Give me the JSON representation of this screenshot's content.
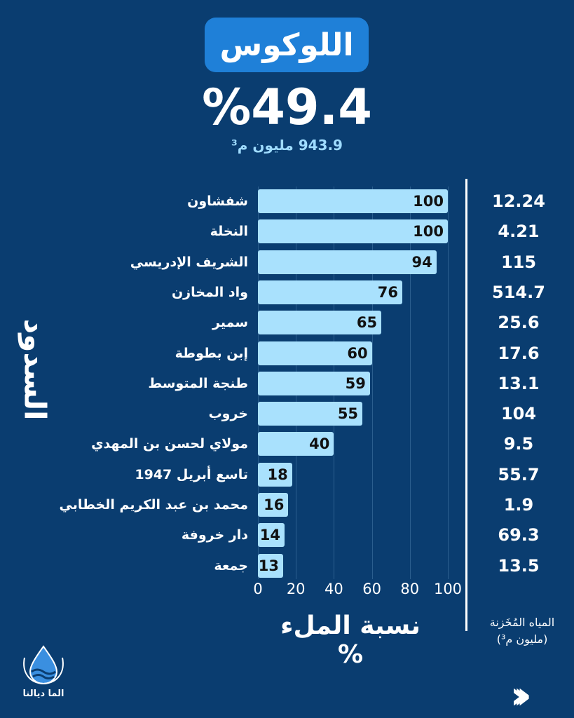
{
  "header": {
    "title": "اللوكوس",
    "percentage": "%49.4",
    "volume": "943.9 مليون م³"
  },
  "colors": {
    "background": "#0a3d70",
    "accent": "#1f80d8",
    "bar": "#a9e1fd"
  },
  "chart_data": {
    "type": "bar",
    "orientation": "horizontal",
    "ylabel": "السدود",
    "xlabel": "نسبة الملء %",
    "xlim": [
      0,
      100
    ],
    "xticks": [
      "0",
      "20",
      "40",
      "60",
      "80",
      "100"
    ],
    "categories": [
      "شفشاون",
      "النخلة",
      "الشريف الإدريسي",
      "واد المخازن",
      "سمير",
      "إبن بطوطة",
      "طنجة المتوسط",
      "خروب",
      "مولاي لحسن بن المهدي",
      "تاسع أبريل 1947",
      "محمد بن عبد الكريم الخطابي",
      "دار خروفة",
      "جمعة"
    ],
    "values": [
      100,
      100,
      94,
      76,
      65,
      60,
      59,
      55,
      40,
      18,
      16,
      14,
      13
    ],
    "stored_label": "المياه المُخَزنة",
    "stored_unit": "(مليون م³)",
    "stored": [
      "12.24",
      "4.21",
      "115",
      "514.7",
      "25.6",
      "17.6",
      "13.1",
      "104",
      "9.5",
      "55.7",
      "1.9",
      "69.3",
      "13.5"
    ]
  },
  "footer": {
    "logo_text": "الما ديالنا",
    "next_icon": "chevrons-right-icon"
  }
}
